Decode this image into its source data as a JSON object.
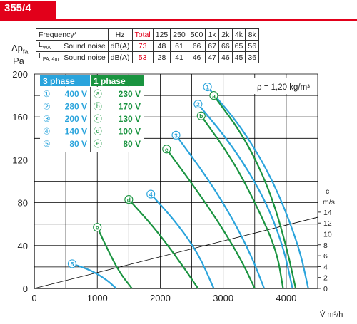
{
  "header": {
    "title": "355/4"
  },
  "table": {
    "header": [
      "Frequency*",
      "Hz",
      "Total",
      "125",
      "250",
      "500",
      "1k",
      "2k",
      "4k",
      "8k"
    ],
    "rows": [
      {
        "code": "L",
        "code_sub": "WA",
        "label": "Sound noise",
        "unit": "dB(A)",
        "total": "73",
        "values": [
          "48",
          "61",
          "66",
          "67",
          "66",
          "65",
          "56"
        ]
      },
      {
        "code": "L",
        "code_sub": "PA, 4m",
        "label": "Sound noise",
        "unit": "dB(A)",
        "total": "53",
        "values": [
          "28",
          "41",
          "46",
          "47",
          "46",
          "45",
          "36"
        ]
      }
    ]
  },
  "axis": {
    "ylabel_top": "Δp",
    "ylabel_top_sub": "fa",
    "ylabel_bottom": "Pa",
    "xlabel": "V̇ m³/h",
    "right_label_top": "c",
    "right_label_bottom": "m/s"
  },
  "colors": {
    "phase3": "#2aa4dc",
    "phase1": "#1a9440",
    "accent": "#e2001a"
  },
  "chart_data": {
    "type": "line",
    "xlabel": "V̇ m³/h",
    "ylabel": "Δpfa Pa",
    "xlim": [
      0,
      4500
    ],
    "ylim": [
      0,
      200
    ],
    "x_ticks": [
      0,
      1000,
      2000,
      3000,
      4000
    ],
    "y_ticks": [
      0,
      40,
      80,
      120,
      160,
      200
    ],
    "velocity_axis": {
      "label": "c m/s",
      "ticks": [
        0,
        2,
        4,
        6,
        8,
        10,
        12,
        14
      ]
    },
    "density_annotation": "ρ = 1,20 kg/m³",
    "grid": true,
    "legend": {
      "phase3": {
        "title": "3 phase",
        "entries": [
          {
            "symbol": "①",
            "label": "400 V"
          },
          {
            "symbol": "②",
            "label": "280 V"
          },
          {
            "symbol": "③",
            "label": "200 V"
          },
          {
            "symbol": "④",
            "label": "140 V"
          },
          {
            "symbol": "⑤",
            "label": "80 V"
          }
        ]
      },
      "phase1": {
        "title": "1 phase",
        "entries": [
          {
            "symbol": "ⓐ",
            "label": "230 V"
          },
          {
            "symbol": "ⓑ",
            "label": "170 V"
          },
          {
            "symbol": "ⓒ",
            "label": "130 V"
          },
          {
            "symbol": "ⓓ",
            "label": "100 V"
          },
          {
            "symbol": "ⓔ",
            "label": "80 V"
          }
        ]
      }
    },
    "series": [
      {
        "marker": "1",
        "group": "3phase",
        "points": [
          [
            2750,
            188
          ],
          [
            3300,
            150
          ],
          [
            3800,
            100
          ],
          [
            4200,
            40
          ],
          [
            4350,
            0
          ]
        ]
      },
      {
        "marker": "2",
        "group": "3phase",
        "points": [
          [
            2600,
            172
          ],
          [
            3150,
            133
          ],
          [
            3650,
            85
          ],
          [
            3950,
            40
          ],
          [
            4100,
            0
          ]
        ]
      },
      {
        "marker": "3",
        "group": "3phase",
        "points": [
          [
            2250,
            143
          ],
          [
            2750,
            103
          ],
          [
            3150,
            65
          ],
          [
            3450,
            30
          ],
          [
            3650,
            0
          ]
        ]
      },
      {
        "marker": "4",
        "group": "3phase",
        "points": [
          [
            1850,
            88
          ],
          [
            2250,
            62
          ],
          [
            2600,
            33
          ],
          [
            2850,
            0
          ]
        ]
      },
      {
        "marker": "5",
        "group": "3phase",
        "points": [
          [
            600,
            23
          ],
          [
            900,
            17
          ],
          [
            1150,
            8
          ],
          [
            1300,
            0
          ]
        ]
      },
      {
        "marker": "a",
        "group": "1phase",
        "points": [
          [
            2850,
            180
          ],
          [
            3350,
            140
          ],
          [
            3750,
            90
          ],
          [
            4000,
            40
          ],
          [
            4150,
            0
          ]
        ]
      },
      {
        "marker": "b",
        "group": "1phase",
        "points": [
          [
            2650,
            161
          ],
          [
            3150,
            120
          ],
          [
            3550,
            75
          ],
          [
            3850,
            35
          ],
          [
            3950,
            0
          ]
        ]
      },
      {
        "marker": "c",
        "group": "1phase",
        "points": [
          [
            2100,
            130
          ],
          [
            2600,
            90
          ],
          [
            3000,
            55
          ],
          [
            3300,
            25
          ],
          [
            3500,
            0
          ]
        ]
      },
      {
        "marker": "d",
        "group": "1phase",
        "points": [
          [
            1500,
            83
          ],
          [
            1900,
            57
          ],
          [
            2250,
            30
          ],
          [
            2600,
            0
          ]
        ]
      },
      {
        "marker": "e",
        "group": "1phase",
        "points": [
          [
            1000,
            57
          ],
          [
            1150,
            38
          ],
          [
            1350,
            15
          ],
          [
            1550,
            0
          ]
        ]
      }
    ]
  }
}
